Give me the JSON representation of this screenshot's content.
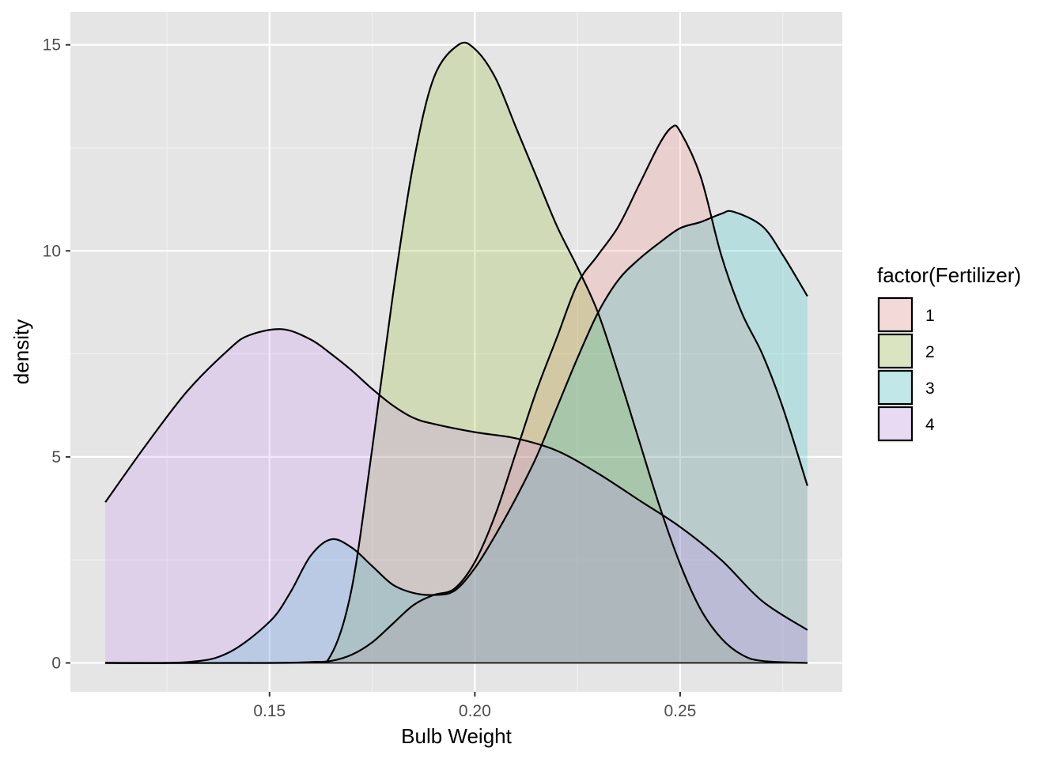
{
  "chart_data": {
    "type": "area",
    "subtype": "density",
    "xlabel": "Bulb Weight",
    "ylabel": "density",
    "xlim": [
      0.1015,
      0.2895
    ],
    "ylim": [
      -0.7,
      15.8
    ],
    "x_ticks": [
      0.15,
      0.2,
      0.25
    ],
    "x_tick_labels": [
      "0.15",
      "0.20",
      "0.25"
    ],
    "y_ticks": [
      0,
      5,
      10,
      15
    ],
    "y_tick_labels": [
      "0",
      "5",
      "10",
      "15"
    ],
    "grid": true,
    "background": "#e5e5e5",
    "legend": {
      "title": "factor(Fertilizer)",
      "position": "right"
    },
    "series": [
      {
        "name": "1",
        "color": "#f8766d",
        "points": [
          [
            0.11,
            0.0
          ],
          [
            0.13,
            0.0
          ],
          [
            0.15,
            0.0
          ],
          [
            0.16,
            0.02
          ],
          [
            0.165,
            0.05
          ],
          [
            0.17,
            0.2
          ],
          [
            0.175,
            0.5
          ],
          [
            0.18,
            0.95
          ],
          [
            0.185,
            1.4
          ],
          [
            0.19,
            1.65
          ],
          [
            0.195,
            1.8
          ],
          [
            0.2,
            2.45
          ],
          [
            0.205,
            3.6
          ],
          [
            0.21,
            5.1
          ],
          [
            0.215,
            6.6
          ],
          [
            0.22,
            7.9
          ],
          [
            0.225,
            9.2
          ],
          [
            0.23,
            9.9
          ],
          [
            0.235,
            10.6
          ],
          [
            0.24,
            11.6
          ],
          [
            0.245,
            12.6
          ],
          [
            0.248,
            13.0
          ],
          [
            0.25,
            12.9
          ],
          [
            0.255,
            11.8
          ],
          [
            0.26,
            9.9
          ],
          [
            0.265,
            8.5
          ],
          [
            0.27,
            7.5
          ],
          [
            0.275,
            6.2
          ],
          [
            0.281,
            4.3
          ]
        ]
      },
      {
        "name": "2",
        "color": "#7cae00",
        "points": [
          [
            0.11,
            0.0
          ],
          [
            0.14,
            0.0
          ],
          [
            0.16,
            0.02
          ],
          [
            0.165,
            0.2
          ],
          [
            0.17,
            1.8
          ],
          [
            0.175,
            5.2
          ],
          [
            0.18,
            8.9
          ],
          [
            0.185,
            12.1
          ],
          [
            0.19,
            14.2
          ],
          [
            0.196,
            15.0
          ],
          [
            0.2,
            14.9
          ],
          [
            0.205,
            14.2
          ],
          [
            0.21,
            13.0
          ],
          [
            0.215,
            11.8
          ],
          [
            0.22,
            10.6
          ],
          [
            0.225,
            9.6
          ],
          [
            0.23,
            8.5
          ],
          [
            0.235,
            7.0
          ],
          [
            0.24,
            5.4
          ],
          [
            0.245,
            3.8
          ],
          [
            0.25,
            2.4
          ],
          [
            0.255,
            1.3
          ],
          [
            0.26,
            0.6
          ],
          [
            0.265,
            0.2
          ],
          [
            0.27,
            0.05
          ],
          [
            0.281,
            0.0
          ]
        ]
      },
      {
        "name": "3",
        "color": "#00bfc4",
        "points": [
          [
            0.11,
            0.0
          ],
          [
            0.13,
            0.02
          ],
          [
            0.14,
            0.25
          ],
          [
            0.15,
            1.0
          ],
          [
            0.155,
            1.7
          ],
          [
            0.16,
            2.6
          ],
          [
            0.165,
            3.0
          ],
          [
            0.17,
            2.8
          ],
          [
            0.175,
            2.35
          ],
          [
            0.18,
            1.9
          ],
          [
            0.185,
            1.7
          ],
          [
            0.19,
            1.65
          ],
          [
            0.195,
            1.75
          ],
          [
            0.2,
            2.3
          ],
          [
            0.205,
            3.1
          ],
          [
            0.21,
            4.0
          ],
          [
            0.215,
            5.0
          ],
          [
            0.22,
            6.2
          ],
          [
            0.225,
            7.4
          ],
          [
            0.23,
            8.5
          ],
          [
            0.235,
            9.3
          ],
          [
            0.24,
            9.8
          ],
          [
            0.245,
            10.2
          ],
          [
            0.25,
            10.55
          ],
          [
            0.255,
            10.7
          ],
          [
            0.26,
            10.9
          ],
          [
            0.263,
            10.95
          ],
          [
            0.27,
            10.6
          ],
          [
            0.275,
            9.9
          ],
          [
            0.281,
            8.9
          ]
        ]
      },
      {
        "name": "4",
        "color": "#c77cff",
        "points": [
          [
            0.11,
            3.9
          ],
          [
            0.12,
            5.3
          ],
          [
            0.13,
            6.6
          ],
          [
            0.14,
            7.6
          ],
          [
            0.145,
            7.95
          ],
          [
            0.153,
            8.1
          ],
          [
            0.16,
            7.85
          ],
          [
            0.165,
            7.5
          ],
          [
            0.17,
            7.1
          ],
          [
            0.175,
            6.65
          ],
          [
            0.18,
            6.25
          ],
          [
            0.185,
            5.95
          ],
          [
            0.19,
            5.8
          ],
          [
            0.2,
            5.6
          ],
          [
            0.21,
            5.45
          ],
          [
            0.22,
            5.15
          ],
          [
            0.23,
            4.6
          ],
          [
            0.24,
            3.95
          ],
          [
            0.25,
            3.3
          ],
          [
            0.26,
            2.5
          ],
          [
            0.27,
            1.5
          ],
          [
            0.281,
            0.8
          ]
        ]
      }
    ]
  }
}
